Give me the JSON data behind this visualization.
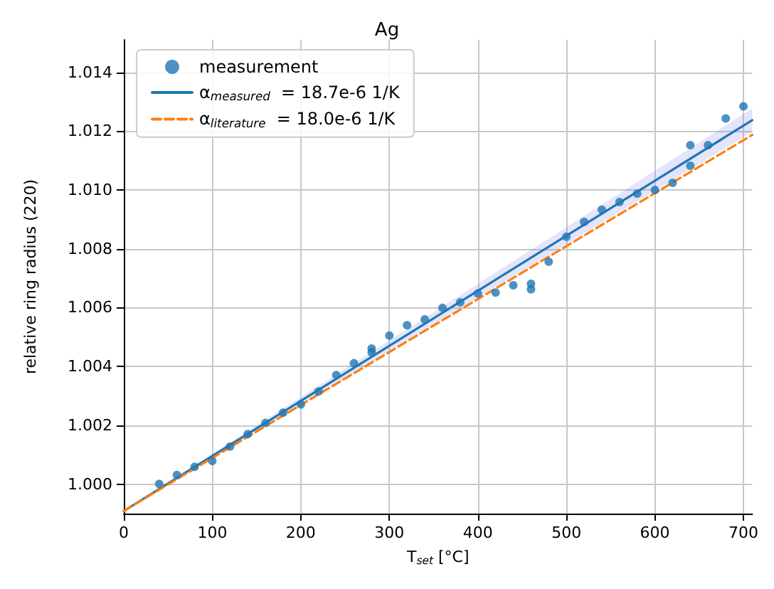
{
  "chart_data": {
    "type": "scatter",
    "title": "Ag",
    "xlabel": "T$_{set}$ [°C]",
    "ylabel": "relative ring radius (220)",
    "xlim": [
      0,
      710
    ],
    "xticks": [
      0,
      100,
      200,
      300,
      400,
      500,
      600,
      700
    ],
    "ylim": [
      0.999,
      1.0151
    ],
    "yticks": [
      {
        "value": 1.0,
        "label": "1.000"
      },
      {
        "value": 1.002,
        "label": "1.002"
      },
      {
        "value": 1.004,
        "label": "1.004"
      },
      {
        "value": 1.006,
        "label": "1.006"
      },
      {
        "value": 1.008,
        "label": "1.008"
      },
      {
        "value": 1.01,
        "label": "1.010"
      },
      {
        "value": 1.012,
        "label": "1.012"
      },
      {
        "value": 1.014,
        "label": "1.014"
      }
    ],
    "grid": true,
    "legend": "top left",
    "series": [
      {
        "name": "measurement",
        "marker": "circle",
        "color": "#1f77b4",
        "x": [
          40,
          60,
          80,
          100,
          120,
          140,
          160,
          180,
          200,
          220,
          240,
          260,
          280,
          280,
          300,
          320,
          340,
          360,
          380,
          400,
          420,
          440,
          460,
          460,
          480,
          500,
          520,
          540,
          560,
          580,
          600,
          620,
          640,
          640,
          660,
          680,
          700
        ],
        "values": [
          1.00001,
          1.00031,
          1.00059,
          1.00079,
          1.00128,
          1.0017,
          1.00208,
          1.00243,
          1.00271,
          1.00315,
          1.00371,
          1.00411,
          1.00461,
          1.00448,
          1.00505,
          1.0054,
          1.0056,
          1.00599,
          1.00618,
          1.00648,
          1.00651,
          1.00676,
          1.00662,
          1.00681,
          1.00756,
          1.00841,
          1.00891,
          1.00933,
          1.00959,
          1.00987,
          1.01,
          1.01024,
          1.01152,
          1.01082,
          1.01152,
          1.01243,
          1.01284
        ]
      },
      {
        "name": "α$_{measured}$  = 18.7e-6 1/K",
        "type": "line",
        "marker": "none",
        "line_style": "solid",
        "color": "#1f77b4",
        "x": [
          0,
          710
        ],
        "values": [
          0.99909,
          1.01237
        ],
        "lower": [
          0.99907,
          1.01197
        ],
        "upper": [
          0.99911,
          1.01277
        ]
      },
      {
        "name": "α$_{literature}$  = 18.0e-6 1/K",
        "type": "line",
        "marker": "none",
        "line_style": "dashed",
        "color": "#ff7f0e",
        "x": [
          0,
          710
        ],
        "values": [
          0.99909,
          1.01187
        ]
      }
    ]
  }
}
